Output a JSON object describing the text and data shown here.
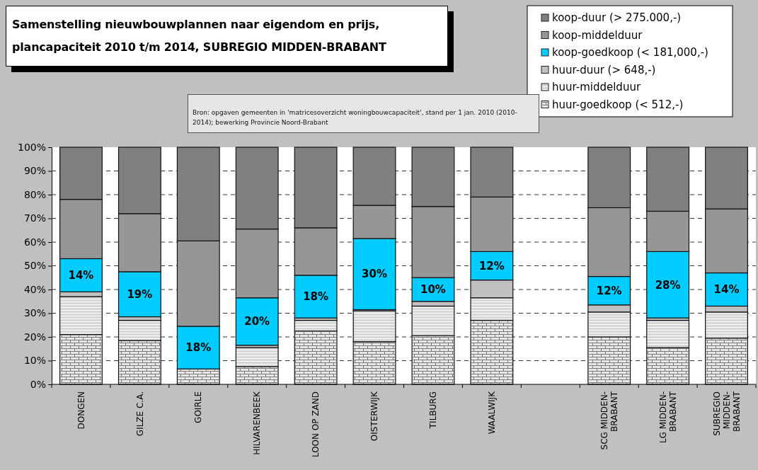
{
  "chart_data": {
    "type": "bar",
    "stacked": true,
    "title": "Samenstelling nieuwbouwplannen naar eigendom en prijs, plancapaciteit 2010 t/m 2014, SUBREGIO MIDDEN-BRABANT",
    "annotations": [
      "Bron: opgaven gemeenten in 'matricesoverzicht woningbouwcapaciteit', stand per 1 jan. 2010 (2010-2014); bewerking Provincie Noord-Brabant"
    ],
    "categories": [
      "DONGEN",
      "GILZE C.A.",
      "GOIRLE",
      "HILVARENBEEK",
      "LOON OP ZAND",
      "OISTERWIJK",
      "TILBURG",
      "WAALWIJK",
      null,
      "SCG MIDDEN-BRABANT",
      "LG MIDDEN-BRABANT",
      "SUBREGIO MIDDEN-BRABANT"
    ],
    "series": [
      {
        "name": "huur-goedkoop (< 512,-)",
        "color": "#e8e8e8",
        "values": [
          21,
          18.5,
          6.5,
          7.5,
          22.5,
          18,
          20.5,
          27,
          null,
          20,
          15.5,
          19.5
        ]
      },
      {
        "name": "huur-middelduur",
        "color": "#d6d6d6",
        "values": [
          16,
          8.5,
          0,
          8,
          4.5,
          13,
          12.5,
          9.5,
          null,
          10.5,
          11.5,
          11
        ]
      },
      {
        "name": "huur-duur (> 648,-)",
        "color": "#c0c0c0",
        "values": [
          2,
          1.5,
          0,
          1,
          1,
          0.5,
          2,
          7.5,
          null,
          3,
          1,
          2.5
        ]
      },
      {
        "name": "koop-goedkoop (< 181,000,-)",
        "color": "#00ccff",
        "values": [
          14,
          19,
          18,
          20,
          18,
          30,
          10,
          12,
          null,
          12,
          28,
          14
        ],
        "value_labels": [
          "14%",
          "19%",
          "18%",
          "20%",
          "18%",
          "30%",
          "10%",
          "12%",
          null,
          "12%",
          "28%",
          "14%"
        ]
      },
      {
        "name": "koop-middelduur",
        "color": "#969696",
        "values": [
          25,
          24.5,
          36,
          29,
          20,
          14,
          30,
          23,
          null,
          29,
          17,
          27
        ]
      },
      {
        "name": "koop-duur (> 275.000,-)",
        "color": "#808080",
        "values": [
          22,
          28,
          39.5,
          34.5,
          34,
          24.5,
          25,
          21,
          null,
          25.5,
          27,
          26
        ]
      }
    ],
    "ylim": [
      0,
      100
    ],
    "yticks": [
      {
        "value": 0,
        "label": "0%"
      },
      {
        "value": 10,
        "label": "10%"
      },
      {
        "value": 20,
        "label": "20%"
      },
      {
        "value": 30,
        "label": "30%"
      },
      {
        "value": 40,
        "label": "40%"
      },
      {
        "value": 50,
        "label": "50%"
      },
      {
        "value": 60,
        "label": "60%"
      },
      {
        "value": 70,
        "label": "70%"
      },
      {
        "value": 80,
        "label": "80%"
      },
      {
        "value": 90,
        "label": "90%"
      },
      {
        "value": 100,
        "label": "100%"
      }
    ],
    "grid": "y",
    "legend": "top right"
  }
}
